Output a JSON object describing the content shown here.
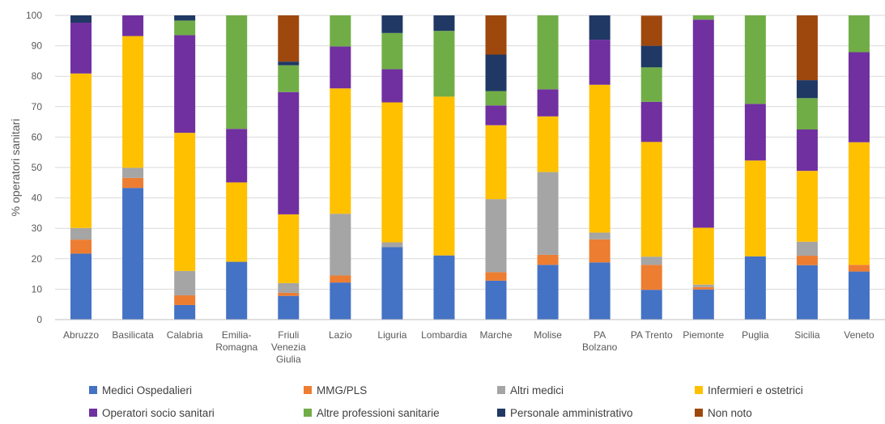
{
  "chart_data": {
    "type": "bar",
    "stacked": true,
    "title": "",
    "xlabel": "",
    "ylabel": "% operatori sanitari",
    "ylim": [
      0,
      100
    ],
    "yticks": [
      0,
      10,
      20,
      30,
      40,
      50,
      60,
      70,
      80,
      90,
      100
    ],
    "grid": true,
    "legend_position": "bottom",
    "categories": [
      "Abruzzo",
      "Basilicata",
      "Calabria",
      "Emilia-Romagna",
      "Friuli Venezia Giulia",
      "Lazio",
      "Liguria",
      "Lombardia",
      "Marche",
      "Molise",
      "PA Bolzano",
      "PA Trento",
      "Piemonte",
      "Puglia",
      "Sicilia",
      "Veneto"
    ],
    "category_label_lines": [
      [
        "Abruzzo"
      ],
      [
        "Basilicata"
      ],
      [
        "Calabria"
      ],
      [
        "Emilia-",
        "Romagna"
      ],
      [
        "Friuli",
        "Venezia",
        "Giulia"
      ],
      [
        "Lazio"
      ],
      [
        "Liguria"
      ],
      [
        "Lombardia"
      ],
      [
        "Marche"
      ],
      [
        "Molise"
      ],
      [
        "PA",
        "Bolzano"
      ],
      [
        "PA Trento"
      ],
      [
        "Piemonte"
      ],
      [
        "Puglia"
      ],
      [
        "Sicilia"
      ],
      [
        "Veneto"
      ]
    ],
    "series": [
      {
        "name": "Medici Ospedalieri",
        "color": "#4472C4",
        "values": [
          21.7,
          43.3,
          4.8,
          19.0,
          7.8,
          12.2,
          23.8,
          21.1,
          12.8,
          18.0,
          18.8,
          9.8,
          9.9,
          20.8,
          17.9,
          15.8
        ]
      },
      {
        "name": "MMG/PLS",
        "color": "#ED7D31",
        "values": [
          4.6,
          3.3,
          3.2,
          0,
          1.0,
          2.3,
          0,
          0,
          2.8,
          3.3,
          7.6,
          8.2,
          0.8,
          0,
          3.1,
          2.2
        ]
      },
      {
        "name": "Altri medici",
        "color": "#A5A5A5",
        "values": [
          3.8,
          3.3,
          8.0,
          0,
          3.2,
          20.3,
          1.6,
          0,
          24.0,
          27.2,
          2.2,
          2.7,
          0.8,
          0,
          4.6,
          0
        ]
      },
      {
        "name": "Infermieri e ostetrici",
        "color": "#FFC000",
        "values": [
          50.8,
          43.3,
          45.4,
          26.1,
          22.6,
          41.2,
          46.0,
          52.2,
          24.3,
          18.3,
          48.6,
          37.7,
          18.7,
          31.5,
          23.3,
          40.3
        ]
      },
      {
        "name": "Operatori socio sanitari",
        "color": "#7030A0",
        "values": [
          16.7,
          6.8,
          32.1,
          17.6,
          40.2,
          13.8,
          10.9,
          0,
          6.5,
          8.9,
          14.8,
          13.2,
          68.4,
          18.6,
          13.6,
          29.6
        ]
      },
      {
        "name": "Altre professioni sanitarie",
        "color": "#70AD47",
        "values": [
          0,
          0,
          4.8,
          37.3,
          8.8,
          10.2,
          11.9,
          21.6,
          4.7,
          24.3,
          0,
          11.3,
          1.4,
          29.1,
          10.3,
          12.1
        ]
      },
      {
        "name": "Personale amministrativo",
        "color": "#203864",
        "values": [
          2.4,
          0,
          1.7,
          0,
          1.2,
          0,
          5.8,
          5.1,
          12.0,
          0,
          8.0,
          7.1,
          0,
          0,
          5.9,
          0
        ]
      },
      {
        "name": "Non noto",
        "color": "#9E480E",
        "values": [
          0,
          0,
          0,
          0,
          15.2,
          0,
          0,
          0,
          12.9,
          0,
          0,
          9.9,
          0,
          0,
          21.3,
          0
        ]
      }
    ]
  }
}
